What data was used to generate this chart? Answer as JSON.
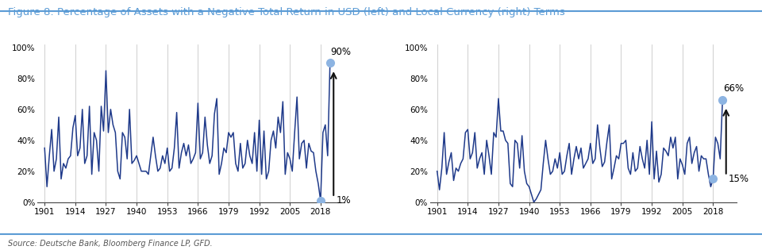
{
  "title": "Figure 8: Percentage of Assets with a Negative Total Return in USD (left) and Local Currency (right) Terms",
  "source": "Source: Deutsche Bank, Bloomberg Finance LP, GFD.",
  "title_color": "#5b9bd5",
  "line_color": "#1f3a8a",
  "dot_color": "#8db4e2",
  "background_color": "#ffffff",
  "grid_color": "#c8c8c8",
  "years": [
    1901,
    1902,
    1903,
    1904,
    1905,
    1906,
    1907,
    1908,
    1909,
    1910,
    1911,
    1912,
    1913,
    1914,
    1915,
    1916,
    1917,
    1918,
    1919,
    1920,
    1921,
    1922,
    1923,
    1924,
    1925,
    1926,
    1927,
    1928,
    1929,
    1930,
    1931,
    1932,
    1933,
    1934,
    1935,
    1936,
    1937,
    1938,
    1939,
    1940,
    1941,
    1942,
    1943,
    1944,
    1945,
    1946,
    1947,
    1948,
    1949,
    1950,
    1951,
    1952,
    1953,
    1954,
    1955,
    1956,
    1957,
    1958,
    1959,
    1960,
    1961,
    1962,
    1963,
    1964,
    1965,
    1966,
    1967,
    1968,
    1969,
    1970,
    1971,
    1972,
    1973,
    1974,
    1975,
    1976,
    1977,
    1978,
    1979,
    1980,
    1981,
    1982,
    1983,
    1984,
    1985,
    1986,
    1987,
    1988,
    1989,
    1990,
    1991,
    1992,
    1993,
    1994,
    1995,
    1996,
    1997,
    1998,
    1999,
    2000,
    2001,
    2002,
    2003,
    2004,
    2005,
    2006,
    2007,
    2008,
    2009,
    2010,
    2011,
    2012,
    2013,
    2014,
    2015,
    2016,
    2017,
    2018,
    2019,
    2020,
    2021,
    2022
  ],
  "usd_values": [
    35,
    10,
    30,
    47,
    20,
    28,
    55,
    15,
    25,
    22,
    28,
    30,
    48,
    56,
    30,
    35,
    60,
    25,
    30,
    62,
    18,
    45,
    40,
    20,
    62,
    46,
    85,
    45,
    60,
    50,
    45,
    20,
    15,
    45,
    42,
    28,
    60,
    25,
    27,
    30,
    25,
    20,
    20,
    20,
    18,
    30,
    42,
    30,
    20,
    22,
    30,
    25,
    35,
    20,
    22,
    35,
    58,
    22,
    32,
    38,
    30,
    37,
    25,
    28,
    32,
    64,
    28,
    32,
    55,
    37,
    25,
    30,
    57,
    67,
    18,
    25,
    35,
    32,
    45,
    42,
    45,
    25,
    20,
    38,
    22,
    25,
    40,
    30,
    25,
    45,
    20,
    53,
    18,
    46,
    15,
    20,
    40,
    46,
    35,
    55,
    45,
    65,
    18,
    32,
    28,
    20,
    45,
    68,
    28,
    38,
    40,
    22,
    38,
    33,
    32,
    20,
    12,
    1,
    45,
    50,
    30,
    90
  ],
  "lcl_values": [
    20,
    8,
    22,
    45,
    18,
    26,
    32,
    14,
    22,
    20,
    25,
    28,
    45,
    47,
    28,
    32,
    45,
    22,
    28,
    32,
    18,
    40,
    30,
    18,
    45,
    42,
    67,
    46,
    46,
    40,
    38,
    12,
    10,
    40,
    38,
    22,
    43,
    20,
    12,
    10,
    5,
    0,
    2,
    5,
    8,
    25,
    40,
    28,
    18,
    20,
    28,
    22,
    32,
    18,
    20,
    30,
    38,
    18,
    28,
    36,
    28,
    35,
    22,
    25,
    28,
    38,
    25,
    28,
    50,
    35,
    23,
    26,
    39,
    50,
    15,
    22,
    30,
    28,
    38,
    38,
    40,
    22,
    18,
    32,
    20,
    22,
    36,
    28,
    22,
    40,
    18,
    52,
    15,
    33,
    13,
    18,
    35,
    33,
    30,
    42,
    35,
    42,
    15,
    28,
    24,
    18,
    38,
    42,
    25,
    32,
    36,
    20,
    30,
    28,
    28,
    18,
    10,
    15,
    42,
    38,
    28,
    66
  ],
  "xticks": [
    1901,
    1914,
    1927,
    1940,
    1953,
    1966,
    1979,
    1992,
    2005,
    2018
  ],
  "yticks": [
    0,
    20,
    40,
    60,
    80,
    100
  ],
  "ylim": [
    0,
    102
  ],
  "xlim_left": 1898,
  "xlim_right": 2028,
  "arrow_color": "#111111",
  "annotation_fontsize": 8.5,
  "tick_fontsize": 7.5,
  "title_fontsize": 9.5,
  "source_fontsize": 7,
  "usd_high_label": "90%",
  "usd_low_label": "1%",
  "usd_high_val": 90,
  "usd_low_val": 1,
  "usd_high_year": 2022,
  "usd_low_year": 2018,
  "lcl_high_label": "66%",
  "lcl_low_label": "15%",
  "lcl_high_val": 66,
  "lcl_low_val": 15,
  "lcl_high_year": 2022,
  "lcl_low_year": 2018
}
